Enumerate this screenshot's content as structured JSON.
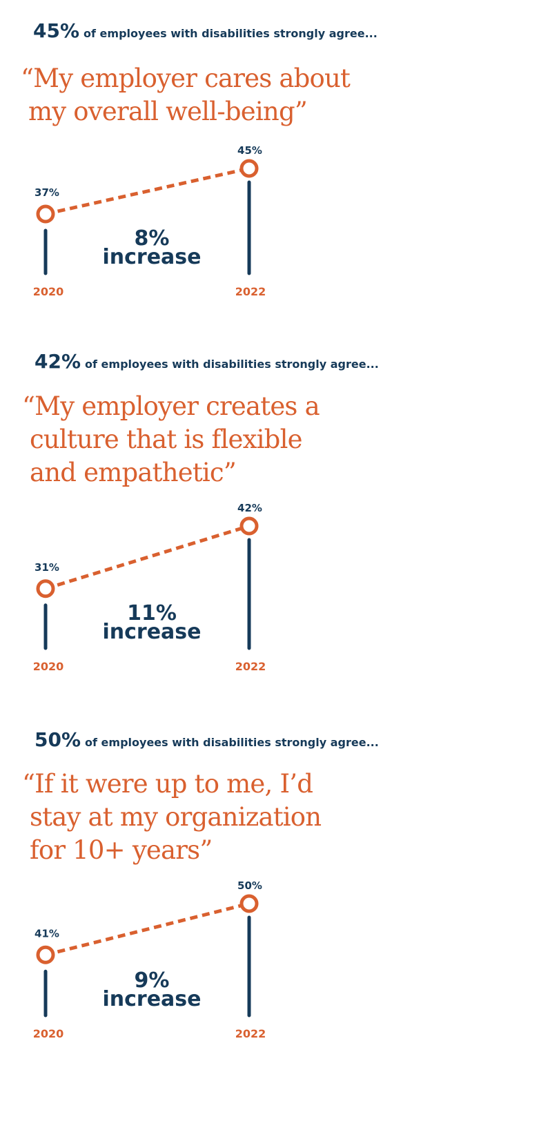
{
  "colors": {
    "navy": "#163a59",
    "orange": "#d9602f"
  },
  "panels": [
    {
      "headline_value": "45%",
      "headline_text": "of employees with disabilities strongly agree...",
      "quote": "“My employer cares about\n my overall well-being”"
    },
    {
      "headline_value": "42%",
      "headline_text": "of employees with disabilities strongly agree...",
      "quote": "“My employer creates a\n culture that is flexible\n and empathetic”"
    },
    {
      "headline_value": "50%",
      "headline_text": "of employees with disabilities strongly agree...",
      "quote": "“If it were up to me, I’d\n stay at my organization\n for 10+ years”"
    }
  ],
  "chart_data": [
    {
      "type": "line",
      "x": [
        "2020",
        "2022"
      ],
      "values": [
        37,
        45
      ],
      "data_labels": [
        "37%",
        "45%"
      ],
      "annotation_value": "8%",
      "annotation_text": "increase"
    },
    {
      "type": "line",
      "x": [
        "2020",
        "2022"
      ],
      "values": [
        31,
        42
      ],
      "data_labels": [
        "31%",
        "42%"
      ],
      "annotation_value": "11%",
      "annotation_text": "increase"
    },
    {
      "type": "line",
      "x": [
        "2020",
        "2022"
      ],
      "values": [
        41,
        50
      ],
      "data_labels": [
        "41%",
        "50%"
      ],
      "annotation_value": "9%",
      "annotation_text": "increase"
    }
  ]
}
